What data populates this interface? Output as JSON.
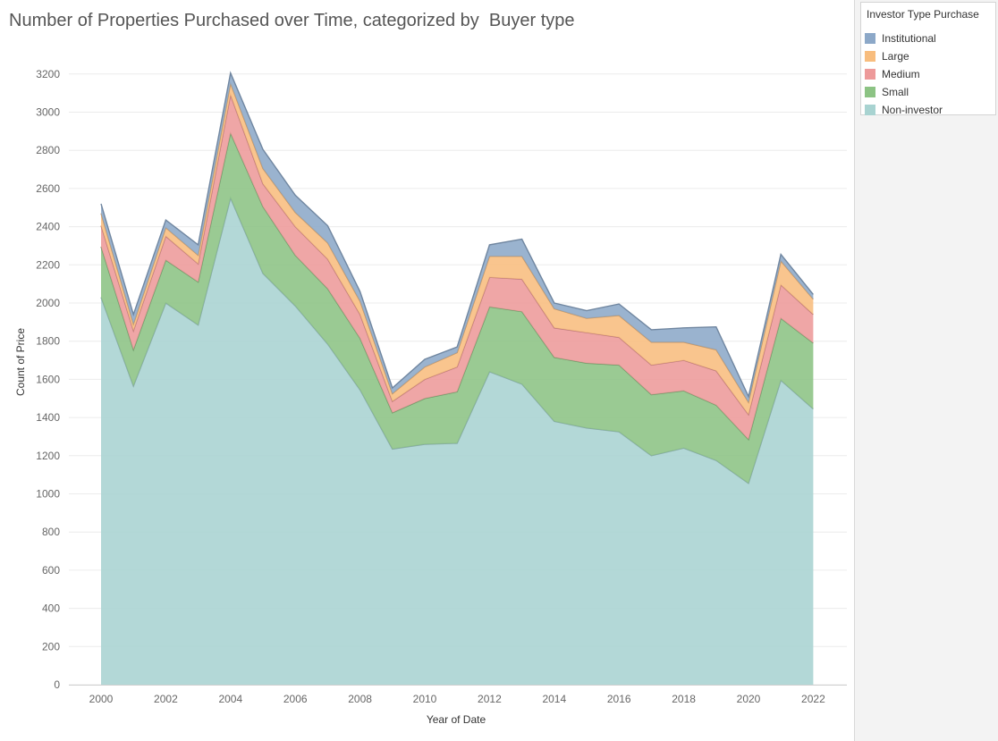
{
  "chart_data": {
    "type": "area",
    "stacked": true,
    "title": "Number of Properties Purchased over Time, categorized by  Buyer type",
    "xlabel": "Year of Date",
    "ylabel": "Count of Price",
    "xlim": [
      2000,
      2022
    ],
    "ylim": [
      0,
      3250
    ],
    "x_ticks": [
      "2000",
      "2002",
      "2004",
      "2006",
      "2008",
      "2010",
      "2012",
      "2014",
      "2016",
      "2018",
      "2020",
      "2022"
    ],
    "y_ticks": [
      "0",
      "200",
      "400",
      "600",
      "800",
      "1000",
      "1200",
      "1400",
      "1600",
      "1800",
      "2000",
      "2200",
      "2400",
      "2600",
      "2800",
      "3000",
      "3200"
    ],
    "grid": true,
    "legend_title": "Investor Type Purchase",
    "legend_position": "top-right",
    "x": [
      2000,
      2001,
      2002,
      2003,
      2004,
      2005,
      2006,
      2007,
      2008,
      2009,
      2010,
      2011,
      2012,
      2013,
      2014,
      2015,
      2016,
      2017,
      2018,
      2019,
      2020,
      2021,
      2022
    ],
    "series": [
      {
        "name": "Non-investor",
        "color": "#a8d3d1",
        "values": [
          2030,
          1565,
          2000,
          1885,
          2550,
          2155,
          1985,
          1785,
          1545,
          1235,
          1260,
          1265,
          1640,
          1575,
          1380,
          1345,
          1325,
          1200,
          1240,
          1175,
          1055,
          1595,
          1445
        ]
      },
      {
        "name": "Small",
        "color": "#8cc384",
        "values": [
          265,
          190,
          225,
          225,
          340,
          350,
          265,
          290,
          270,
          190,
          240,
          270,
          340,
          380,
          335,
          340,
          350,
          320,
          300,
          290,
          230,
          325,
          345
        ]
      },
      {
        "name": "Medium",
        "color": "#ed9a9a",
        "values": [
          110,
          100,
          125,
          95,
          200,
          120,
          150,
          155,
          125,
          60,
          100,
          130,
          155,
          170,
          155,
          160,
          145,
          155,
          160,
          180,
          130,
          175,
          150
        ]
      },
      {
        "name": "Large",
        "color": "#f8bd7e",
        "values": [
          65,
          35,
          45,
          45,
          60,
          80,
          75,
          85,
          70,
          40,
          65,
          75,
          110,
          120,
          100,
          75,
          115,
          120,
          95,
          110,
          65,
          125,
          80
        ]
      },
      {
        "name": "Institutional",
        "color": "#8ca8c8",
        "values": [
          50,
          50,
          40,
          55,
          55,
          100,
          90,
          90,
          50,
          30,
          40,
          30,
          60,
          90,
          30,
          40,
          60,
          65,
          75,
          120,
          30,
          35,
          25
        ]
      }
    ]
  }
}
